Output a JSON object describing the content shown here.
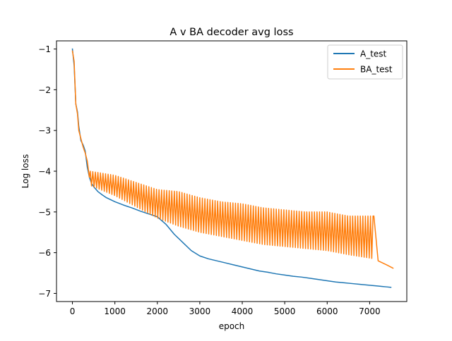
{
  "chart_data": {
    "type": "line",
    "title": "A v BA decoder avg loss",
    "xlabel": "epoch",
    "ylabel": "Log loss",
    "xlim": [
      -375,
      7875
    ],
    "ylim": [
      -7.2,
      -0.8
    ],
    "xticks": [
      0,
      1000,
      2000,
      3000,
      4000,
      5000,
      6000,
      7000
    ],
    "xtick_labels": [
      "0",
      "1000",
      "2000",
      "3000",
      "4000",
      "5000",
      "6000",
      "7000"
    ],
    "yticks": [
      -1,
      -2,
      -3,
      -4,
      -5,
      -6,
      -7
    ],
    "ytick_labels": [
      "−1",
      "−2",
      "−3",
      "−4",
      "−5",
      "−6",
      "−7"
    ],
    "grid": false,
    "legend_position": "upper right",
    "series": [
      {
        "name": "A_test",
        "color": "#1f77b4",
        "x": [
          0,
          40,
          80,
          120,
          150,
          200,
          250,
          300,
          350,
          400,
          450,
          500,
          600,
          700,
          800,
          1000,
          1200,
          1400,
          1600,
          1800,
          2000,
          2200,
          2400,
          2600,
          2800,
          3000,
          3200,
          3400,
          3600,
          3800,
          4000,
          4200,
          4400,
          4600,
          4800,
          5000,
          5200,
          5400,
          5600,
          5800,
          6000,
          6200,
          6400,
          6600,
          6800,
          7000,
          7200,
          7300,
          7400,
          7500
        ],
        "y": [
          -1.0,
          -1.4,
          -2.35,
          -2.55,
          -2.9,
          -3.25,
          -3.35,
          -3.5,
          -3.9,
          -4.15,
          -4.3,
          -4.38,
          -4.5,
          -4.58,
          -4.65,
          -4.75,
          -4.83,
          -4.9,
          -4.98,
          -5.05,
          -5.12,
          -5.3,
          -5.55,
          -5.75,
          -5.95,
          -6.08,
          -6.15,
          -6.2,
          -6.25,
          -6.3,
          -6.35,
          -6.4,
          -6.45,
          -6.48,
          -6.52,
          -6.55,
          -6.58,
          -6.6,
          -6.63,
          -6.66,
          -6.69,
          -6.72,
          -6.74,
          -6.76,
          -6.78,
          -6.8,
          -6.82,
          -6.83,
          -6.84,
          -6.85
        ]
      },
      {
        "name": "BA_test",
        "color": "#ff7f0e",
        "oscillation_start": 420,
        "oscillation_end": 7100,
        "oscillation_period": 60,
        "x": [
          0,
          40,
          80,
          120,
          150,
          200,
          250,
          300,
          350,
          400,
          420,
          600,
          800,
          1000,
          1200,
          1400,
          1600,
          1800,
          2000,
          2500,
          3000,
          3500,
          4000,
          4500,
          5000,
          5500,
          6000,
          6500,
          7000,
          7100,
          7200,
          7300,
          7400,
          7550
        ],
        "y": [
          -1.05,
          -1.3,
          -2.35,
          -2.6,
          -3.0,
          -3.2,
          -3.4,
          -3.55,
          -3.75,
          -4.15,
          -4.25,
          -4.3,
          -4.4,
          -4.5,
          -4.58,
          -4.65,
          -4.75,
          -4.82,
          -4.88,
          -5.0,
          -5.08,
          -5.15,
          -5.22,
          -5.28,
          -5.35,
          -5.42,
          -5.48,
          -5.55,
          -5.62,
          -6.15,
          -6.2,
          -6.25,
          -6.3,
          -6.38
        ],
        "upper_envelope": [
          [
            420,
            -4.0
          ],
          [
            1000,
            -4.1
          ],
          [
            2000,
            -4.45
          ],
          [
            2500,
            -4.5
          ],
          [
            3000,
            -4.65
          ],
          [
            3500,
            -4.75
          ],
          [
            4000,
            -4.8
          ],
          [
            4500,
            -4.9
          ],
          [
            5000,
            -4.95
          ],
          [
            5500,
            -5.0
          ],
          [
            6000,
            -5.0
          ],
          [
            6500,
            -5.1
          ],
          [
            7100,
            -5.1
          ]
        ],
        "lower_envelope": [
          [
            420,
            -4.35
          ],
          [
            1000,
            -4.6
          ],
          [
            2000,
            -5.15
          ],
          [
            2500,
            -5.35
          ],
          [
            3000,
            -5.5
          ],
          [
            3500,
            -5.6
          ],
          [
            4000,
            -5.7
          ],
          [
            4500,
            -5.8
          ],
          [
            5000,
            -5.85
          ],
          [
            5500,
            -5.9
          ],
          [
            6000,
            -5.95
          ],
          [
            6500,
            -6.05
          ],
          [
            7100,
            -6.15
          ]
        ]
      }
    ]
  }
}
